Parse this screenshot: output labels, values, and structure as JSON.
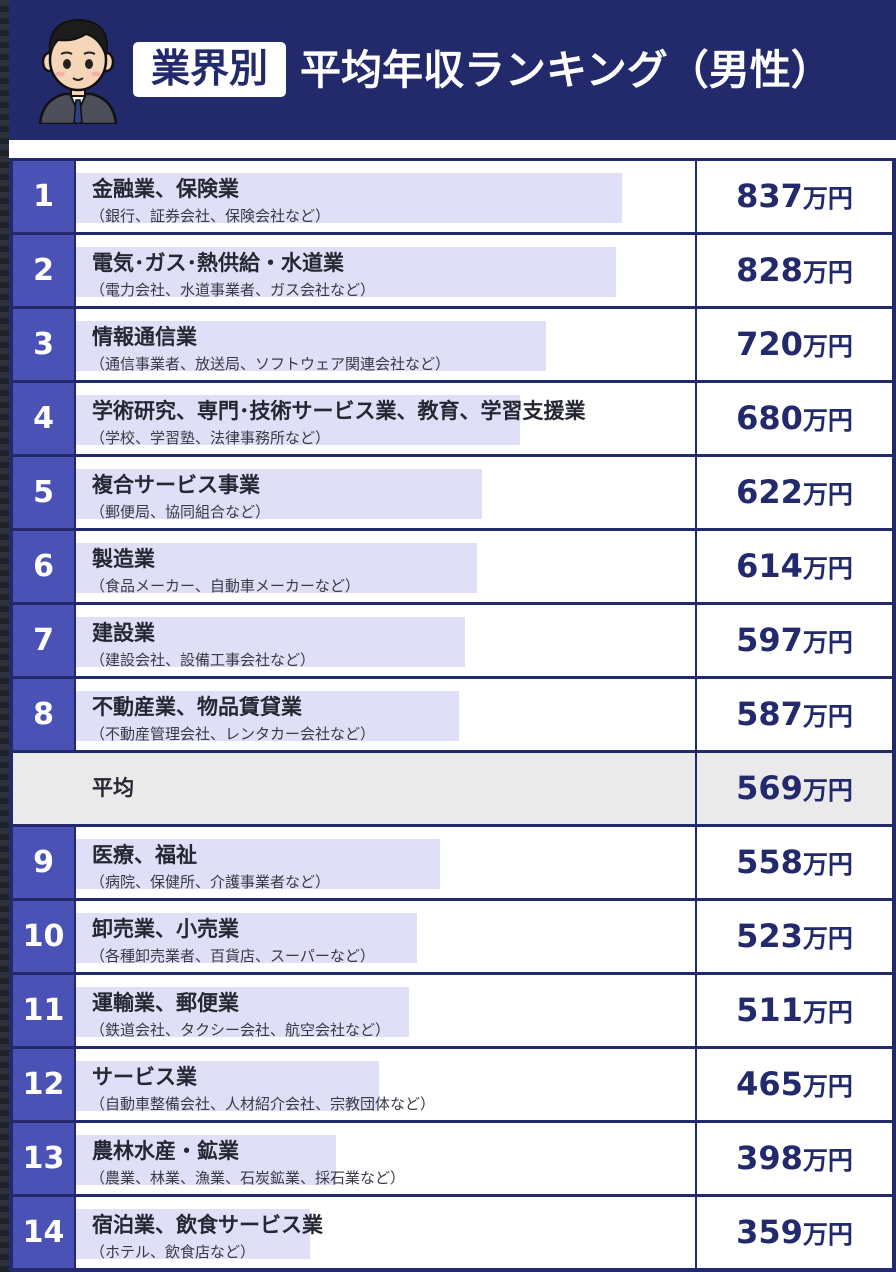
{
  "header": {
    "badge": "業界別",
    "title": "平均年収ランキング（男性）"
  },
  "colors": {
    "navy": "#232a6c",
    "rank_blue": "#4a53b5",
    "bar_fill": "#dfe0f7",
    "average_row": "#eaeaea"
  },
  "icons": {
    "avatar": "businessman-avatar-icon"
  },
  "unit": "万円",
  "average": {
    "label": "平均",
    "value": 569,
    "insert_after_rank": 8
  },
  "chart_data": {
    "type": "bar",
    "title": "業界別 平均年収ランキング（男性）",
    "unit": "万円",
    "xlim": [
      0,
      1000
    ],
    "categories": [
      "金融業、保険業",
      "電気･ガス･熱供給・水道業",
      "情報通信業",
      "学術研究、専門･技術サービス業、教育、学習支援業",
      "複合サービス事業",
      "製造業",
      "建設業",
      "不動産業、物品賃貸業",
      "医療、福祉",
      "卸売業、小売業",
      "運輸業、郵便業",
      "サービス業",
      "農林水産・鉱業",
      "宿泊業、飲食サービス業"
    ],
    "values": [
      837,
      828,
      720,
      680,
      622,
      614,
      597,
      587,
      558,
      523,
      511,
      465,
      398,
      359
    ],
    "rows": [
      {
        "rank": "1",
        "name": "金融業、保険業",
        "sub": "（銀行、証券会社、保険会社など）",
        "value": 837
      },
      {
        "rank": "2",
        "name": "電気･ガス･熱供給・水道業",
        "sub": "（電力会社、水道事業者、ガス会社など）",
        "value": 828
      },
      {
        "rank": "3",
        "name": "情報通信業",
        "sub": "（通信事業者、放送局、ソフトウェア関連会社など）",
        "value": 720
      },
      {
        "rank": "4",
        "name": "学術研究、専門･技術サービス業、教育、学習支援業",
        "sub": "（学校、学習塾、法律事務所など）",
        "value": 680
      },
      {
        "rank": "5",
        "name": "複合サービス事業",
        "sub": "（郵便局、協同組合など）",
        "value": 622
      },
      {
        "rank": "6",
        "name": "製造業",
        "sub": "（食品メーカー、自動車メーカーなど）",
        "value": 614
      },
      {
        "rank": "7",
        "name": "建設業",
        "sub": "（建設会社、設備工事会社など）",
        "value": 597
      },
      {
        "rank": "8",
        "name": "不動産業、物品賃貸業",
        "sub": "（不動産管理会社、レンタカー会社など）",
        "value": 587
      },
      {
        "rank": "9",
        "name": "医療、福祉",
        "sub": "（病院、保健所、介護事業者など）",
        "value": 558
      },
      {
        "rank": "10",
        "name": "卸売業、小売業",
        "sub": "（各種卸売業者、百貨店、スーパーなど）",
        "value": 523
      },
      {
        "rank": "11",
        "name": "運輸業、郵便業",
        "sub": "（鉄道会社、タクシー会社、航空会社など）",
        "value": 511
      },
      {
        "rank": "12",
        "name": "サービス業",
        "sub": "（自動車整備会社、人材紹介会社、宗教団体など）",
        "value": 465
      },
      {
        "rank": "13",
        "name": "農林水産・鉱業",
        "sub": "（農業、林業、漁業、石炭鉱業、採石業など）",
        "value": 398
      },
      {
        "rank": "14",
        "name": "宿泊業、飲食サービス業",
        "sub": "（ホテル、飲食店など）",
        "value": 359
      }
    ]
  }
}
